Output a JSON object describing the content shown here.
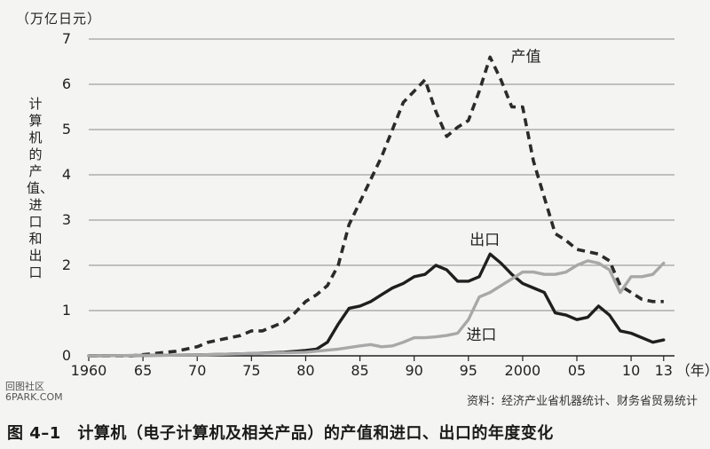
{
  "chart_data": {
    "type": "line",
    "title": "",
    "unit_label": "（万亿日元）",
    "ylabel": "计算机的产值、进口和出口",
    "xlabel_suffix": "（年）",
    "ylim": [
      0,
      7
    ],
    "xlim": [
      1960,
      2014
    ],
    "yticks": [
      "0",
      "1",
      "2",
      "3",
      "4",
      "5",
      "6",
      "7"
    ],
    "xticks": [
      {
        "x": 1960,
        "label": "1960"
      },
      {
        "x": 1965,
        "label": "65"
      },
      {
        "x": 1970,
        "label": "70"
      },
      {
        "x": 1975,
        "label": "75"
      },
      {
        "x": 1980,
        "label": "80"
      },
      {
        "x": 1985,
        "label": "85"
      },
      {
        "x": 1990,
        "label": "90"
      },
      {
        "x": 1995,
        "label": "95"
      },
      {
        "x": 2000,
        "label": "2000"
      },
      {
        "x": 2005,
        "label": "05"
      },
      {
        "x": 2010,
        "label": "10"
      },
      {
        "x": 2013,
        "label": "13"
      }
    ],
    "grid": true,
    "series": [
      {
        "name": "产值",
        "style": "dashed",
        "color": "#2b2b2b",
        "x": [
          1960,
          1964,
          1966,
          1968,
          1969,
          1970,
          1971,
          1972,
          1973,
          1974,
          1975,
          1976,
          1977,
          1978,
          1979,
          1980,
          1981,
          1982,
          1983,
          1984,
          1985,
          1986,
          1987,
          1988,
          1989,
          1990,
          1991,
          1992,
          1993,
          1994,
          1995,
          1996,
          1997,
          1998,
          1999,
          2000,
          2001,
          2002,
          2003,
          2004,
          2005,
          2006,
          2007,
          2008,
          2009,
          2010,
          2011,
          2012,
          2013
        ],
        "values": [
          0,
          0,
          0.05,
          0.1,
          0.15,
          0.2,
          0.3,
          0.35,
          0.4,
          0.45,
          0.55,
          0.55,
          0.65,
          0.75,
          0.95,
          1.2,
          1.35,
          1.55,
          2.0,
          2.9,
          3.4,
          3.9,
          4.4,
          5.0,
          5.6,
          5.85,
          6.1,
          5.4,
          4.85,
          5.05,
          5.2,
          5.85,
          6.6,
          6.1,
          5.5,
          5.5,
          4.3,
          3.5,
          2.7,
          2.55,
          2.35,
          2.3,
          2.25,
          2.1,
          1.55,
          1.4,
          1.25,
          1.2,
          1.2
        ]
      },
      {
        "name": "出口",
        "style": "solid",
        "color": "#1f1f1f",
        "x": [
          1960,
          1970,
          1975,
          1978,
          1980,
          1981,
          1982,
          1983,
          1984,
          1985,
          1986,
          1987,
          1988,
          1989,
          1990,
          1991,
          1992,
          1993,
          1994,
          1995,
          1996,
          1997,
          1998,
          1999,
          2000,
          2001,
          2002,
          2003,
          2004,
          2005,
          2006,
          2007,
          2008,
          2009,
          2010,
          2011,
          2012,
          2013
        ],
        "values": [
          0,
          0.02,
          0.05,
          0.08,
          0.12,
          0.15,
          0.3,
          0.7,
          1.05,
          1.1,
          1.2,
          1.35,
          1.5,
          1.6,
          1.75,
          1.8,
          2.0,
          1.9,
          1.65,
          1.65,
          1.75,
          2.25,
          2.05,
          1.8,
          1.6,
          1.5,
          1.4,
          0.95,
          0.9,
          0.8,
          0.85,
          1.1,
          0.9,
          0.55,
          0.5,
          0.4,
          0.3,
          0.35
        ]
      },
      {
        "name": "进口",
        "style": "solid",
        "color": "#a8a8a8",
        "x": [
          1960,
          1970,
          1975,
          1980,
          1983,
          1985,
          1986,
          1987,
          1988,
          1989,
          1990,
          1991,
          1992,
          1993,
          1994,
          1995,
          1996,
          1997,
          1998,
          1999,
          2000,
          2001,
          2002,
          2003,
          2004,
          2005,
          2006,
          2007,
          2008,
          2009,
          2010,
          2011,
          2012,
          2013
        ],
        "values": [
          0,
          0.02,
          0.05,
          0.08,
          0.15,
          0.22,
          0.25,
          0.2,
          0.22,
          0.3,
          0.4,
          0.4,
          0.42,
          0.45,
          0.5,
          0.8,
          1.3,
          1.4,
          1.55,
          1.7,
          1.85,
          1.85,
          1.8,
          1.8,
          1.85,
          2.0,
          2.1,
          2.05,
          1.9,
          1.4,
          1.75,
          1.75,
          1.8,
          2.05
        ]
      }
    ],
    "annotations": [
      {
        "text": "产值",
        "series": "产值"
      },
      {
        "text": "出口",
        "series": "出口"
      },
      {
        "text": "进口",
        "series": "进口"
      }
    ]
  },
  "source_note": "资料：经济产业省机器统计、财务省贸易统计",
  "caption": "图 4–1　计算机（电子计算机及相关产品）的产值和进口、出口的年度变化",
  "watermark": "回图社区\n6PARK.COM"
}
